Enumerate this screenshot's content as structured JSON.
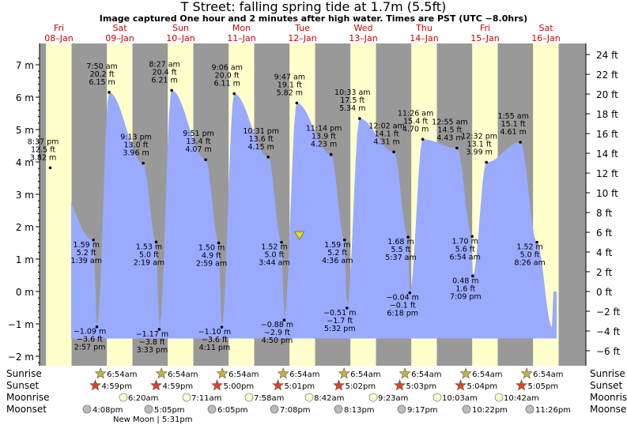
{
  "header": {
    "title": "T Street: falling  spring tide at 1.7m (5.5ft)",
    "subtitle": "Image captured One hour and 2 minutes after high water. Times are PST (UTC −8.0hrs)"
  },
  "chart_data": {
    "type": "area",
    "units": {
      "left": "m",
      "right": "ft"
    },
    "ylim_m": [
      -2.3,
      7.5
    ],
    "days": [
      {
        "dow": "Fri",
        "date": "08–Jan"
      },
      {
        "dow": "Sat",
        "date": "09–Jan"
      },
      {
        "dow": "Sun",
        "date": "10–Jan"
      },
      {
        "dow": "Mon",
        "date": "11–Jan"
      },
      {
        "dow": "Tue",
        "date": "12–Jan"
      },
      {
        "dow": "Wed",
        "date": "13–Jan"
      },
      {
        "dow": "Thu",
        "date": "14–Jan"
      },
      {
        "dow": "Fri",
        "date": "15–Jan"
      },
      {
        "dow": "Sat",
        "date": "16–Jan"
      }
    ],
    "y_ticks_m": [
      "−2 m",
      "−1 m",
      "0 m",
      "1 m",
      "2 m",
      "3 m",
      "4 m",
      "5 m",
      "6 m",
      "7 m"
    ],
    "y_ticks_ft": [
      "−6 ft",
      "−4 ft",
      "−2 ft",
      "0 ft",
      "2 ft",
      "4 ft",
      "6 ft",
      "8 ft",
      "10 ft",
      "12 ft",
      "14 ft",
      "16 ft",
      "18 ft",
      "20 ft",
      "22 ft",
      "24 ft"
    ],
    "tides": [
      {
        "t": 0.358,
        "m": "3.82 m",
        "ft": "12.5 ft",
        "time": "8:37 pm",
        "level": 3.82
      },
      {
        "t": 1.068,
        "m": "1.59 m",
        "ft": "5.2 ft",
        "time": "1:39 am",
        "level": 1.59
      },
      {
        "t": 1.124,
        "m": "−1.09 m",
        "ft": "−3.6 ft",
        "time": "2:57 pm",
        "level": -1.09
      },
      {
        "t": 1.326,
        "m": "6.15 m",
        "ft": "20.2 ft",
        "time": "7:50 am",
        "level": 6.15
      },
      {
        "t": 1.884,
        "m": "3.96 m",
        "ft": "13.0 ft",
        "time": "9:13 pm",
        "level": 3.96
      },
      {
        "t": 2.097,
        "m": "1.53 m",
        "ft": "5.0 ft",
        "time": "2:19 am",
        "level": 1.53
      },
      {
        "t": 2.148,
        "m": "−1.17 m",
        "ft": "−3.8 ft",
        "time": "3:33 pm",
        "level": -1.17
      },
      {
        "t": 2.352,
        "m": "6.21 m",
        "ft": "20.4 ft",
        "time": "8:27 am",
        "level": 6.21
      },
      {
        "t": 2.91,
        "m": "4.07 m",
        "ft": "13.4 ft",
        "time": "9:51 pm",
        "level": 4.07
      },
      {
        "t": 3.124,
        "m": "1.50 m",
        "ft": "4.9 ft",
        "time": "2:59 am",
        "level": 1.5
      },
      {
        "t": 3.174,
        "m": "−1.10 m",
        "ft": "−3.6 ft",
        "time": "4:11 pm",
        "level": -1.1
      },
      {
        "t": 3.379,
        "m": "6.11 m",
        "ft": "20.0 ft",
        "time": "9:06 am",
        "level": 6.11
      },
      {
        "t": 3.938,
        "m": "4.15 m",
        "ft": "13.6 ft",
        "time": "10:31 pm",
        "level": 4.15
      },
      {
        "t": 4.156,
        "m": "1.52 m",
        "ft": "5.0 ft",
        "time": "3:44 am",
        "level": 1.52
      },
      {
        "t": 4.201,
        "m": "−0.88 m",
        "ft": "−2.9 ft",
        "time": "4:50 pm",
        "level": -0.88
      },
      {
        "t": 4.407,
        "m": "5.82 m",
        "ft": "19.1 ft",
        "time": "9:47 am",
        "level": 5.82
      },
      {
        "t": 4.968,
        "m": "4.23 m",
        "ft": "13.9 ft",
        "time": "11:14 pm",
        "level": 4.23
      },
      {
        "t": 5.192,
        "m": "1.59 m",
        "ft": "5.2 ft",
        "time": "4:36 am",
        "level": 1.59
      },
      {
        "t": 5.231,
        "m": "−0.51 m",
        "ft": "−1.7 ft",
        "time": "5:32 pm",
        "level": -0.51
      },
      {
        "t": 5.439,
        "m": "5.34 m",
        "ft": "17.5 ft",
        "time": "10:33 am",
        "level": 5.34
      },
      {
        "t": 6.001,
        "m": "4.31 m",
        "ft": "14.1 ft",
        "time": "12:02 am",
        "level": 4.31
      },
      {
        "t": 6.234,
        "m": "1.68 m",
        "ft": "5.5 ft",
        "time": "5:37 am",
        "level": 1.68
      },
      {
        "t": 6.263,
        "m": "−0.04 m",
        "ft": "−0.1 ft",
        "time": "6:18 pm",
        "level": -0.04
      },
      {
        "t": 6.476,
        "m": "4.70 m",
        "ft": "15.4 ft",
        "time": "11:26 am",
        "level": 4.7
      },
      {
        "t": 7.038,
        "m": "4.43 m",
        "ft": "14.5 ft",
        "time": "12:55 am",
        "level": 4.43
      },
      {
        "t": 7.288,
        "m": "1.70 m",
        "ft": "5.6 ft",
        "time": "6:54 am",
        "level": 1.7
      },
      {
        "t": 7.297,
        "m": "0.48 m",
        "ft": "1.6 ft",
        "time": "7:09 pm",
        "level": 0.48
      },
      {
        "t": 7.522,
        "m": "3.99 m",
        "ft": "13.1 ft",
        "time": "12:32 pm",
        "level": 3.99
      },
      {
        "t": 8.08,
        "m": "4.61 m",
        "ft": "15.1 ft",
        "time": "1:55 am",
        "level": 4.61
      },
      {
        "t": 8.352,
        "m": "1.52 m",
        "ft": "5.0 ft",
        "time": "8:26 am",
        "level": 1.52
      }
    ],
    "current_level_m": 1.7,
    "row_labels": {
      "sunrise": "Sunrise",
      "sunset": "Sunset",
      "moonrise": "Moonrise",
      "moonset": "Moonset"
    },
    "sunrise": [
      "6:54am",
      "6:54am",
      "6:54am",
      "6:54am",
      "6:54am",
      "6:54am",
      "6:54am",
      "6:54am"
    ],
    "sunset": [
      "4:59pm",
      "4:59pm",
      "5:00pm",
      "5:01pm",
      "5:02pm",
      "5:03pm",
      "5:04pm",
      "5:05pm"
    ],
    "moonrise": [
      "6:20am",
      "7:11am",
      "7:58am",
      "8:42am",
      "9:23am",
      "10:03am",
      "10:42am"
    ],
    "moonset": [
      "4:08pm",
      "5:05pm",
      "6:05pm",
      "7:08pm",
      "8:13pm",
      "9:17pm",
      "10:22pm",
      "11:26pm"
    ],
    "new_moon": "New Moon | 5:31pm",
    "colors": {
      "day": "#ffffcc",
      "night": "#999999",
      "water": "#99aaff",
      "date": "#cc0000",
      "sun": "#c8b432",
      "sunset_star": "#dd4422",
      "moon": "#ffffcc",
      "moonset": "#bbbbbb"
    }
  }
}
